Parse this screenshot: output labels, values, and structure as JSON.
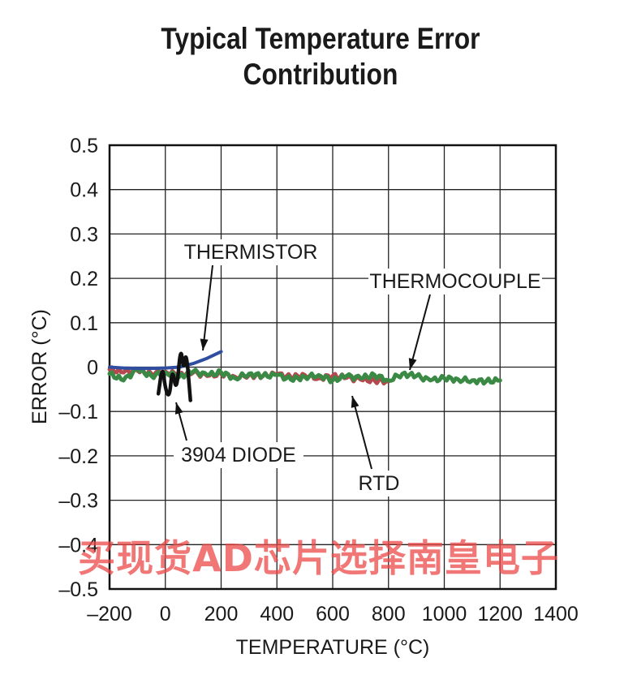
{
  "chart_data": {
    "type": "line",
    "title_lines": [
      "Typical Temperature Error",
      "Contribution"
    ],
    "xlabel": "TEMPERATURE (°C)",
    "ylabel": "ERROR (°C)",
    "xlim": [
      -200,
      1400
    ],
    "ylim": [
      -0.5,
      0.5
    ],
    "xticks": [
      -200,
      0,
      200,
      400,
      600,
      800,
      1000,
      1200,
      1400
    ],
    "xtick_labels": [
      "–200",
      "0",
      "200",
      "400",
      "600",
      "800",
      "1000",
      "1200",
      "1400"
    ],
    "yticks": [
      0.5,
      0.4,
      0.3,
      0.2,
      0.1,
      0,
      -0.1,
      -0.2,
      -0.3,
      -0.4,
      -0.5
    ],
    "ytick_labels": [
      "0.5",
      "0.4",
      "0.3",
      "0.2",
      "0.1",
      "0",
      "–0.1",
      "–0.2",
      "–0.3",
      "–0.4",
      "–0.5"
    ],
    "grid": true,
    "series": [
      {
        "name": "RTD",
        "color": "#b5474f",
        "x": [
          -200,
          -150,
          -100,
          -50,
          0,
          50,
          100,
          150,
          200,
          250,
          300,
          350,
          400,
          450,
          500,
          550,
          600,
          650,
          700,
          750,
          800
        ],
        "y": [
          -0.005,
          -0.012,
          -0.008,
          -0.015,
          -0.01,
          -0.018,
          -0.012,
          -0.02,
          -0.015,
          -0.022,
          -0.018,
          -0.02,
          -0.016,
          -0.023,
          -0.018,
          -0.025,
          -0.02,
          -0.024,
          -0.028,
          -0.03,
          -0.032
        ]
      },
      {
        "name": "THERMOCOUPLE",
        "color": "#3a8a45",
        "x": [
          -200,
          -150,
          -100,
          -50,
          0,
          50,
          100,
          150,
          200,
          250,
          300,
          350,
          400,
          450,
          500,
          550,
          600,
          650,
          700,
          750,
          800,
          850,
          900,
          950,
          1000,
          1050,
          1100,
          1150,
          1200
        ],
        "y": [
          -0.015,
          -0.03,
          -0.005,
          -0.02,
          -0.012,
          -0.022,
          -0.01,
          -0.018,
          -0.012,
          -0.025,
          -0.015,
          -0.02,
          -0.018,
          -0.028,
          -0.022,
          -0.018,
          -0.03,
          -0.02,
          -0.025,
          -0.018,
          -0.03,
          -0.015,
          -0.02,
          -0.03,
          -0.025,
          -0.028,
          -0.03,
          -0.032,
          -0.03
        ]
      },
      {
        "name": "THERMISTOR",
        "color": "#2f4ea0",
        "x": [
          -200,
          -150,
          -100,
          -50,
          0,
          50,
          100,
          150,
          200
        ],
        "y": [
          0.0,
          -0.002,
          -0.003,
          -0.003,
          -0.002,
          0.0,
          0.008,
          0.02,
          0.035
        ]
      },
      {
        "name": "3904 DIODE",
        "color": "#111111",
        "x": [
          -25,
          -10,
          0,
          15,
          25,
          40,
          55,
          65,
          75,
          90
        ],
        "y": [
          -0.06,
          0.005,
          -0.05,
          -0.07,
          0.0,
          -0.06,
          0.05,
          -0.01,
          0.04,
          -0.075
        ]
      }
    ],
    "annotations": [
      {
        "text": "THERMISTOR",
        "points_to_series": "THERMISTOR"
      },
      {
        "text": "THERMOCOUPLE",
        "points_to_series": "THERMOCOUPLE"
      },
      {
        "text": "3904 DIODE",
        "points_to_series": "3904 DIODE"
      },
      {
        "text": "RTD",
        "points_to_series": "RTD"
      }
    ]
  },
  "watermark": "买现货AD芯片选择南皇电子"
}
